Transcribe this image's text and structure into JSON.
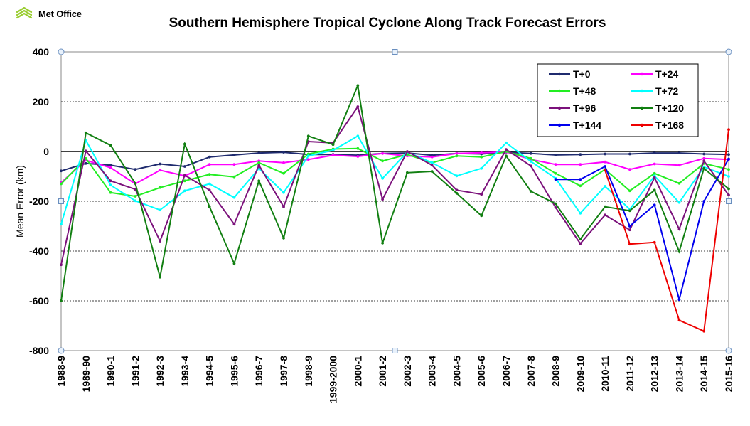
{
  "logo": {
    "text": "Met Office",
    "icon": "met-office-logo-icon",
    "color": "#9acd32"
  },
  "chart_data": {
    "type": "line",
    "title": "Southern Hemisphere Tropical Cyclone Along Track Forecast Errors",
    "xlabel": "",
    "ylabel": "Mean Error (km)",
    "ylim": [
      -800,
      400
    ],
    "yticks": [
      400,
      200,
      0,
      -200,
      -400,
      -600,
      -800
    ],
    "grid": "horizontal dashed",
    "legend_position": "top-right",
    "categories": [
      "1988-9",
      "1989-90",
      "1990-1",
      "1991-2",
      "1992-3",
      "1993-4",
      "1994-5",
      "1995-6",
      "1996-7",
      "1997-8",
      "1998-9",
      "1999-2000",
      "2000-1",
      "2001-2",
      "2002-3",
      "2003-4",
      "2004-5",
      "2005-6",
      "2006-7",
      "2007-8",
      "2008-9",
      "2009-10",
      "2010-11",
      "2011-12",
      "2012-13",
      "2013-14",
      "2014-15",
      "2015-16"
    ],
    "series": [
      {
        "name": "T+0",
        "color": "#1f2b6e",
        "values": [
          -78,
          -48,
          -55,
          -72,
          -50,
          -60,
          -22,
          -14,
          -6,
          -3,
          -12,
          -12,
          -15,
          -8,
          -6,
          -15,
          -8,
          -10,
          -3,
          -8,
          -14,
          -12,
          -10,
          -10,
          -6,
          -6,
          -10,
          -12
        ]
      },
      {
        "name": "T+24",
        "color": "#ff00ff",
        "values": [
          -125,
          -35,
          -65,
          -130,
          -75,
          -98,
          -52,
          -52,
          -38,
          -45,
          -32,
          -15,
          -20,
          -8,
          -18,
          -22,
          -8,
          -5,
          -2,
          -32,
          -52,
          -52,
          -42,
          -72,
          -50,
          -55,
          -28,
          -32
        ]
      },
      {
        "name": "T+48",
        "color": "#22ee22",
        "values": [
          -130,
          -28,
          -165,
          -180,
          -145,
          -118,
          -92,
          -102,
          -45,
          -88,
          -10,
          10,
          12,
          -38,
          -12,
          -45,
          -18,
          -22,
          0,
          -28,
          -88,
          -138,
          -72,
          -158,
          -88,
          -128,
          -48,
          -72
        ]
      },
      {
        "name": "T+72",
        "color": "#00ffff",
        "values": [
          -292,
          45,
          -135,
          -198,
          -235,
          -158,
          -130,
          -185,
          -68,
          -165,
          -18,
          5,
          62,
          -108,
          -2,
          -45,
          -98,
          -68,
          35,
          -40,
          -108,
          -248,
          -140,
          -232,
          -98,
          -205,
          -62,
          -100
        ]
      },
      {
        "name": "T+96",
        "color": "#7b117b",
        "values": [
          -455,
          2,
          -118,
          -152,
          -360,
          -95,
          -155,
          -292,
          -55,
          -222,
          40,
          35,
          180,
          -192,
          0,
          -55,
          -155,
          -172,
          8,
          -58,
          -225,
          -370,
          -255,
          -315,
          -105,
          -312,
          -38,
          -175
        ]
      },
      {
        "name": "T+120",
        "color": "#117f11",
        "values": [
          -600,
          75,
          25,
          -128,
          -505,
          30,
          -222,
          -450,
          -118,
          -348,
          62,
          28,
          265,
          -368,
          -85,
          -80,
          -168,
          -258,
          -18,
          -160,
          -210,
          -352,
          -222,
          -238,
          -155,
          -402,
          -68,
          -150
        ]
      },
      {
        "name": "T+144",
        "color": "#0000ee",
        "values": [
          null,
          null,
          null,
          null,
          null,
          null,
          null,
          null,
          null,
          null,
          null,
          null,
          null,
          null,
          null,
          null,
          null,
          null,
          null,
          null,
          -112,
          -112,
          -60,
          -300,
          -215,
          -595,
          -200,
          -30
        ]
      },
      {
        "name": "T+168",
        "color": "#ee0000",
        "values": [
          null,
          null,
          null,
          null,
          null,
          null,
          null,
          null,
          null,
          null,
          null,
          null,
          null,
          null,
          null,
          null,
          null,
          null,
          null,
          null,
          null,
          null,
          -75,
          -372,
          -365,
          -678,
          -722,
          88
        ]
      }
    ]
  }
}
